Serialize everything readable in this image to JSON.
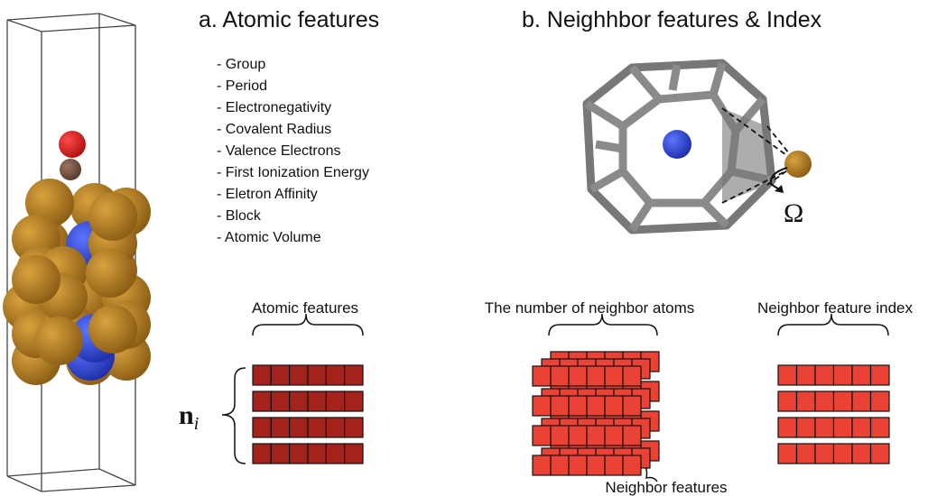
{
  "panel_a": {
    "title": "a. Atomic features",
    "features": [
      "- Group",
      "- Period",
      "- Electronegativity",
      "- Covalent Radius",
      "- Valence Electrons",
      "- First Ionization Energy",
      "- Eletron Affinity",
      "- Block",
      "- Atomic Volume"
    ],
    "matrix_label": "Atomic features",
    "n_symbol": "n",
    "n_subscript": "i"
  },
  "panel_b": {
    "title": "b. Neighhbor features & Index",
    "omega": "Ω",
    "neighbor_count_label": "The number of neighbor atoms",
    "neighbor_features_label": "Neighbor features",
    "index_label": "Neighbor feature index"
  }
}
